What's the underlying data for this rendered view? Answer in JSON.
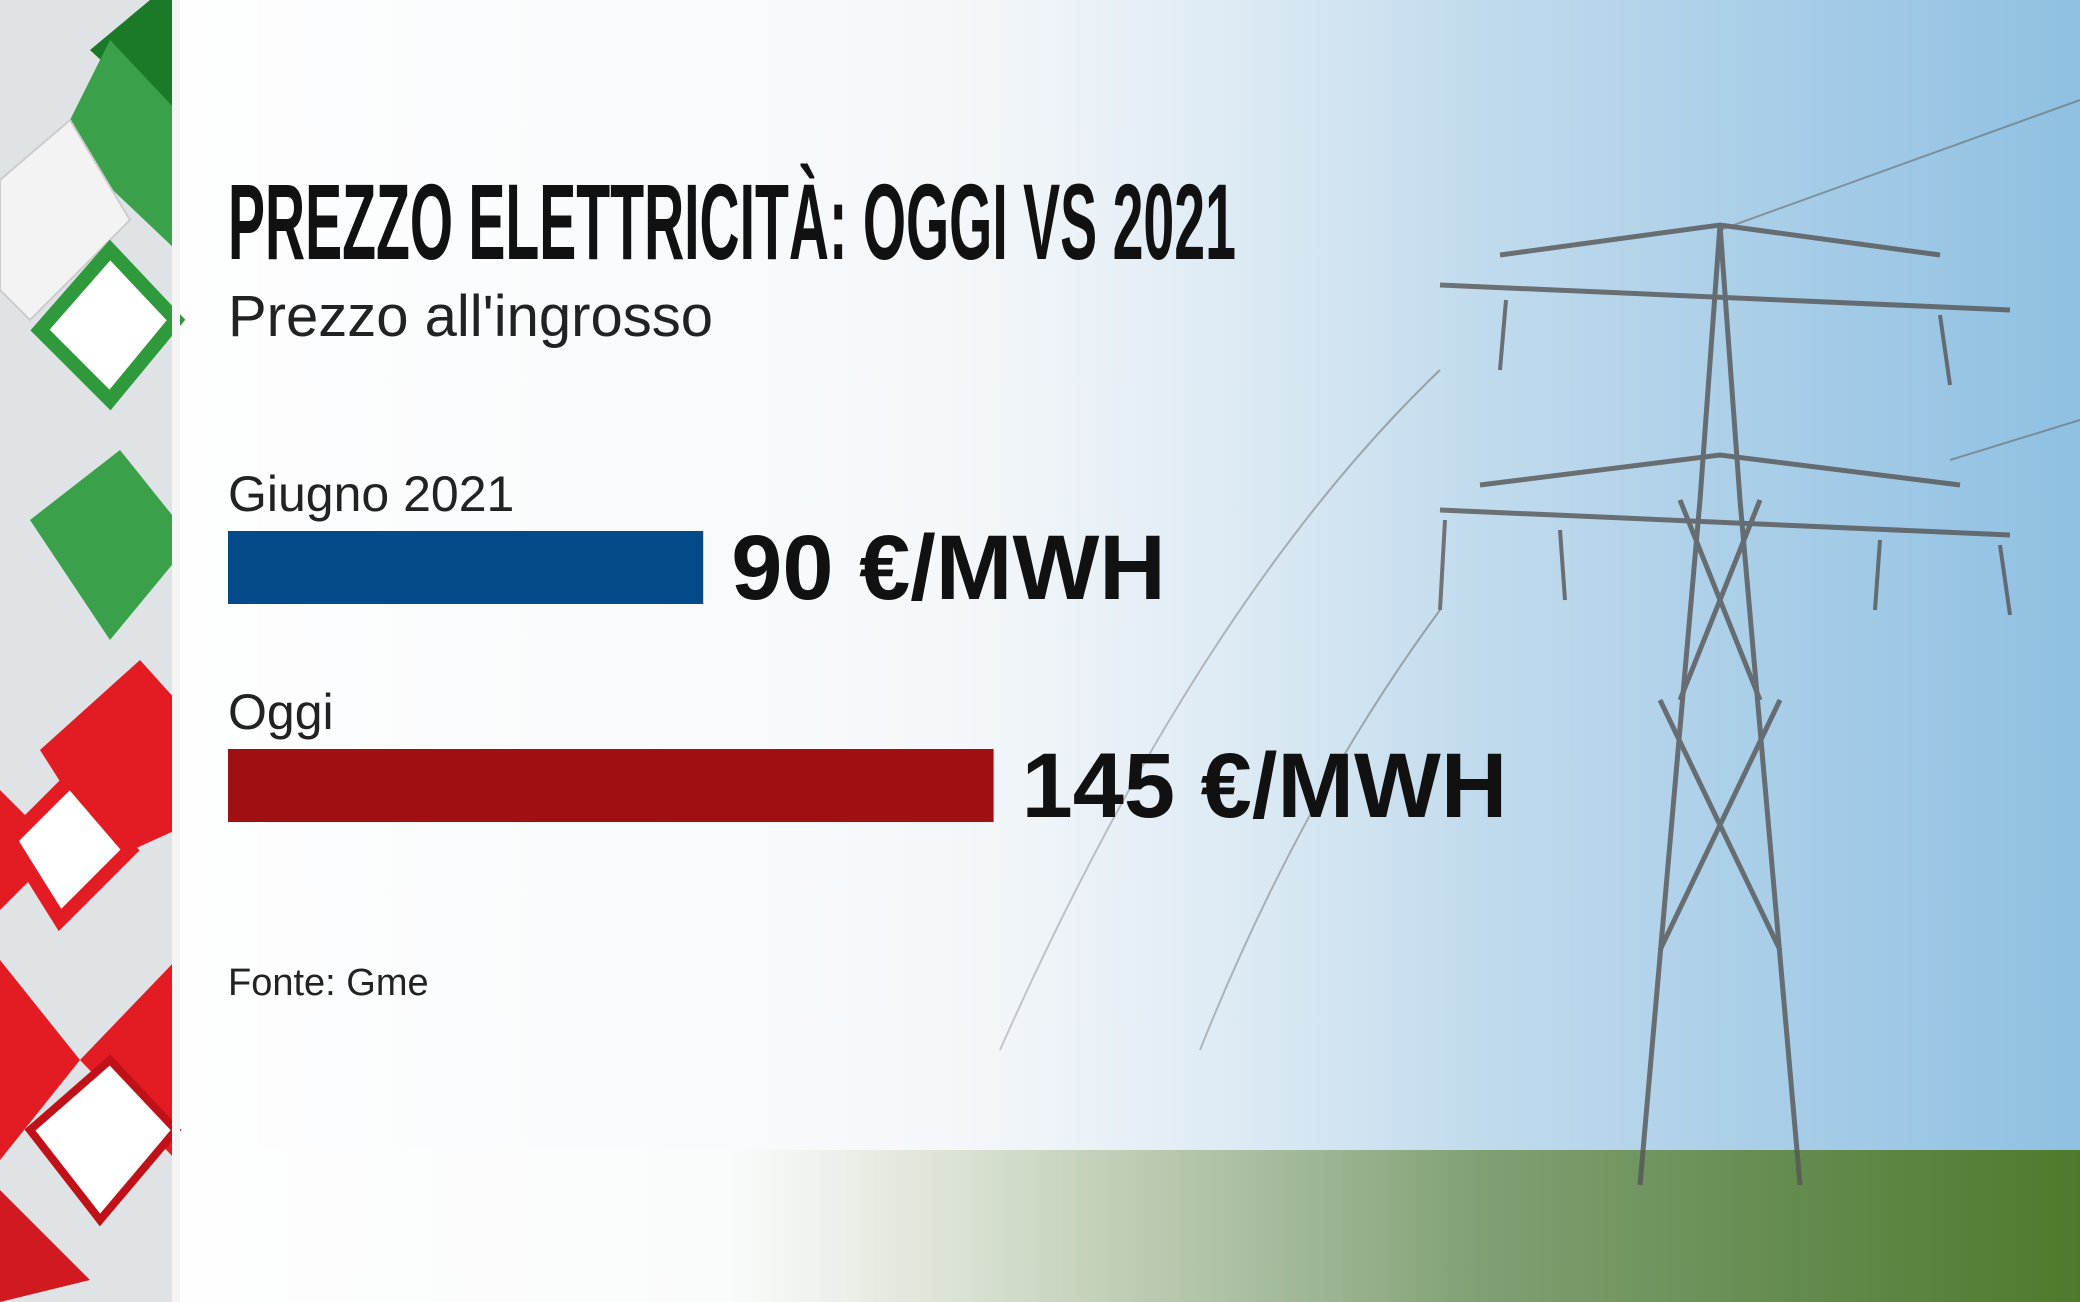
{
  "chart_data": {
    "type": "hbar",
    "title": "PREZZO ELETTRICITÀ: OGGI VS 2021",
    "subtitle": "Prezzo all'ingrosso",
    "categories": [
      "Giugno 2021",
      "Oggi"
    ],
    "values": [
      90,
      145
    ],
    "value_labels": [
      "90 €/MWH",
      "145 €/MWH"
    ],
    "colors": [
      "#044a89",
      "#a01012"
    ],
    "source": "Fonte: Gme"
  }
}
